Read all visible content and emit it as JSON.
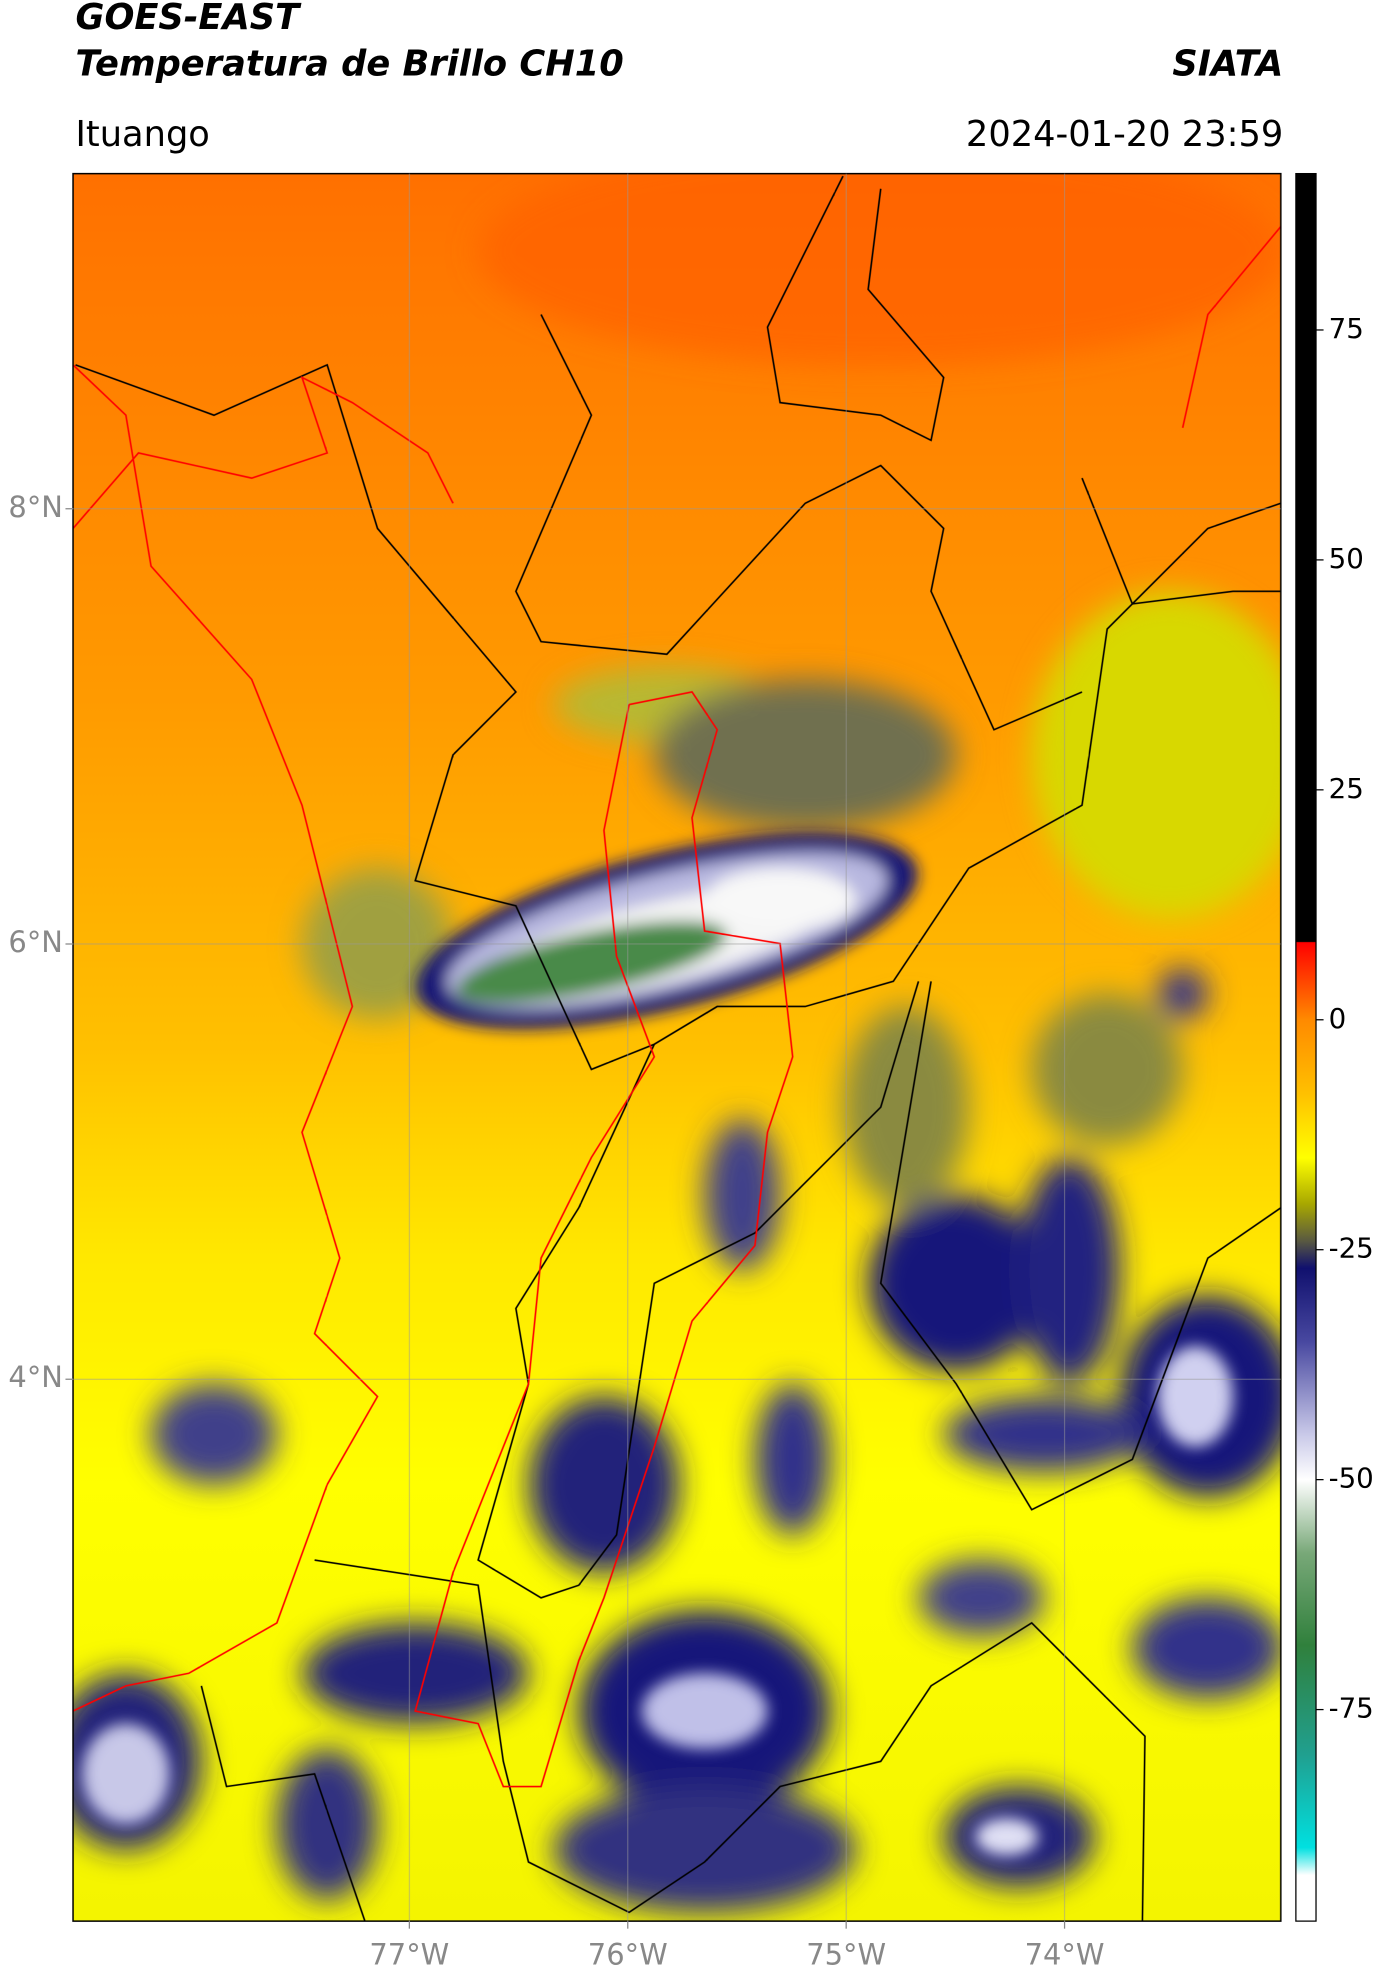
{
  "map": {
    "title": "GOES-EAST",
    "subtitle": "Temperatura de Brillo CH10",
    "source": "SIATA",
    "region": "Ituango",
    "datetime": "2024-01-20 23:59",
    "xlim": [
      -78.54,
      -73.01
    ],
    "ylim": [
      1.51,
      9.54
    ],
    "xticks": [
      {
        "value": -77,
        "label": "77°W"
      },
      {
        "value": -76,
        "label": "76°W"
      },
      {
        "value": -75,
        "label": "75°W"
      },
      {
        "value": -74,
        "label": "74°W"
      }
    ],
    "yticks": [
      {
        "value": 8,
        "label": "8°N"
      },
      {
        "value": 6,
        "label": "6°N"
      },
      {
        "value": 4,
        "label": "4°N"
      }
    ],
    "grid": true,
    "colorbar": {
      "lim": [
        -98,
        92
      ],
      "ticks": [
        75,
        50,
        25,
        0,
        -25,
        -50,
        -75
      ],
      "colormap": [
        {
          "value": 92,
          "color": "#000000"
        },
        {
          "value": 8.5,
          "color": "#000000"
        },
        {
          "value": 8.4,
          "color": "#ff0000"
        },
        {
          "value": 0,
          "color": "#ff8a00"
        },
        {
          "value": -8,
          "color": "#ffc000"
        },
        {
          "value": -15,
          "color": "#ffff00"
        },
        {
          "value": -20,
          "color": "#a8a800"
        },
        {
          "value": -24,
          "color": "#5a5a40"
        },
        {
          "value": -27,
          "color": "#10106e"
        },
        {
          "value": -35,
          "color": "#4848a0"
        },
        {
          "value": -45,
          "color": "#c8c8e8"
        },
        {
          "value": -50,
          "color": "#ffffff"
        },
        {
          "value": -58,
          "color": "#78a878"
        },
        {
          "value": -68,
          "color": "#30803c"
        },
        {
          "value": -80,
          "color": "#20a090"
        },
        {
          "value": -90,
          "color": "#00e0e0"
        },
        {
          "value": -93,
          "color": "#ffffff"
        },
        {
          "value": -98,
          "color": "#ffffff"
        }
      ]
    }
  }
}
